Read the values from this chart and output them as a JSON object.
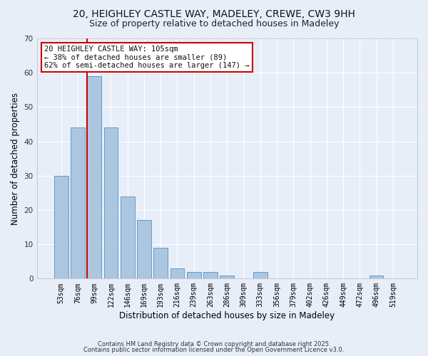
{
  "title1": "20, HEIGHLEY CASTLE WAY, MADELEY, CREWE, CW3 9HH",
  "title2": "Size of property relative to detached houses in Madeley",
  "xlabel": "Distribution of detached houses by size in Madeley",
  "ylabel": "Number of detached properties",
  "categories": [
    "53sqm",
    "76sqm",
    "99sqm",
    "122sqm",
    "146sqm",
    "169sqm",
    "193sqm",
    "216sqm",
    "239sqm",
    "263sqm",
    "286sqm",
    "309sqm",
    "333sqm",
    "356sqm",
    "379sqm",
    "402sqm",
    "426sqm",
    "449sqm",
    "472sqm",
    "496sqm",
    "519sqm"
  ],
  "values": [
    30,
    44,
    59,
    44,
    24,
    17,
    9,
    3,
    2,
    2,
    1,
    0,
    2,
    0,
    0,
    0,
    0,
    0,
    0,
    1,
    0
  ],
  "bar_color": "#adc6e0",
  "bar_edge_color": "#5a9ec9",
  "background_color": "#e8eef8",
  "grid_color": "#ffffff",
  "red_line_index": 2,
  "annotation_text": "20 HEIGHLEY CASTLE WAY: 105sqm\n← 38% of detached houses are smaller (89)\n62% of semi-detached houses are larger (147) →",
  "annotation_box_color": "#ffffff",
  "annotation_box_edge": "#cc0000",
  "red_line_color": "#cc0000",
  "ylim": [
    0,
    70
  ],
  "footnote1": "Contains HM Land Registry data © Crown copyright and database right 2025.",
  "footnote2": "Contains public sector information licensed under the Open Government Licence v3.0.",
  "title_fontsize": 10,
  "subtitle_fontsize": 9,
  "tick_fontsize": 7,
  "ylabel_fontsize": 8.5,
  "xlabel_fontsize": 8.5
}
